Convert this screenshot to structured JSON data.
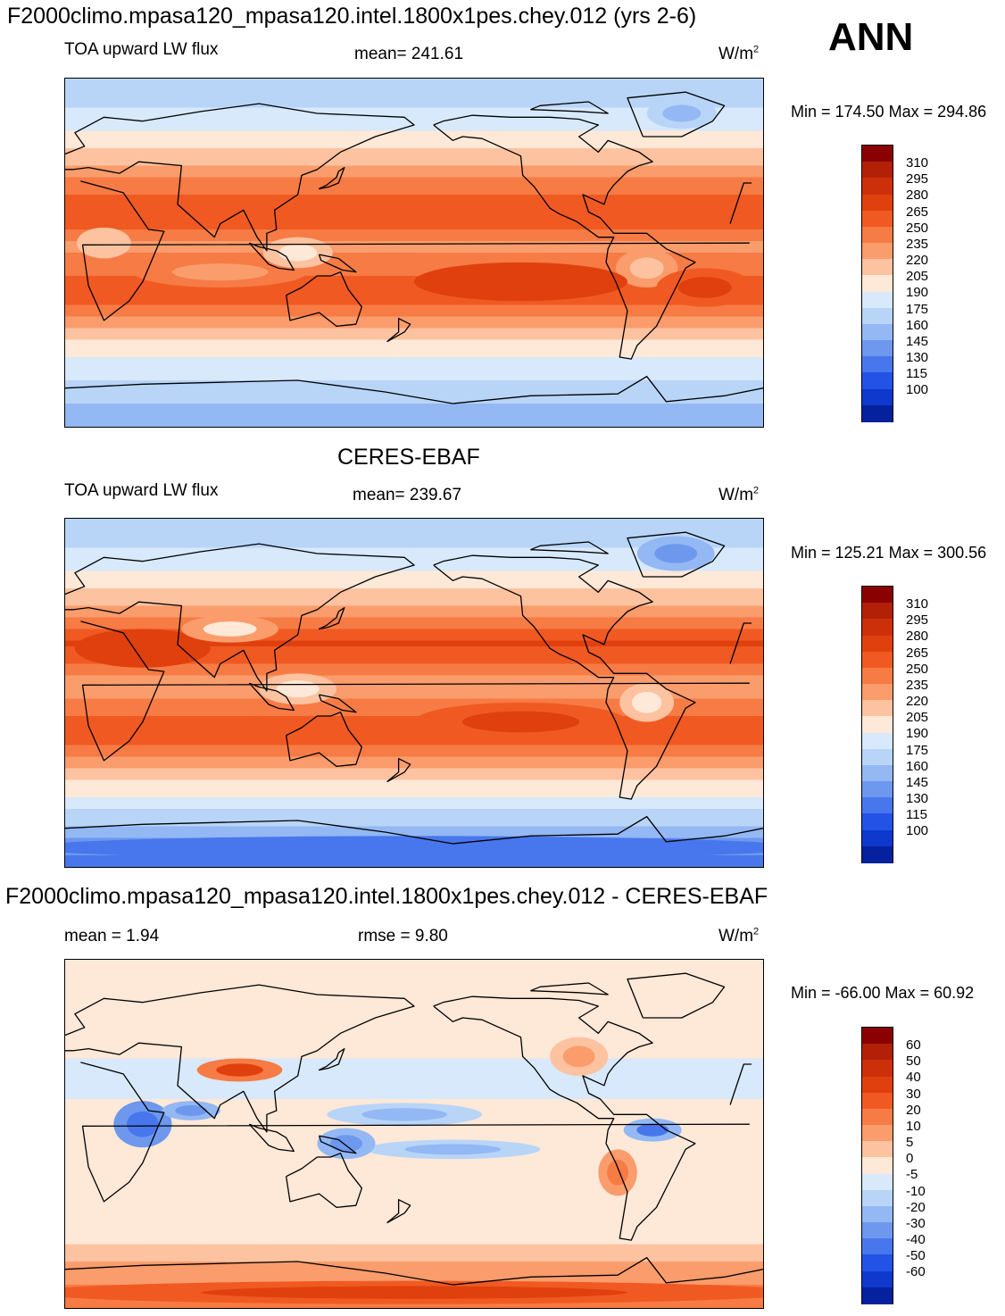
{
  "header": {
    "main_title": "F2000climo.mpasa120_mpasa120.intel.1800x1pes.chey.012 (yrs 2-6)",
    "season": "ANN"
  },
  "panels": [
    {
      "id": "model",
      "title": "",
      "left_label": "TOA upward LW flux",
      "center_label": "mean= 241.61",
      "units": "W/m",
      "units_sup": "2",
      "minmax": "Min = 174.50 Max = 294.86"
    },
    {
      "id": "obs",
      "title": "CERES-EBAF",
      "left_label": "TOA upward LW flux",
      "center_label": "mean= 239.67",
      "units": "W/m",
      "units_sup": "2",
      "minmax": "Min = 125.21 Max = 300.56"
    },
    {
      "id": "diff",
      "title": "F2000climo.mpasa120_mpasa120.intel.1800x1pes.chey.012 - CERES-EBAF",
      "left_label": "mean =   1.94",
      "center_label": "rmse =   9.80",
      "units": "W/m",
      "units_sup": "2",
      "minmax": "Min = -66.00 Max =  60.92"
    }
  ],
  "colorbars": {
    "flux": {
      "ticks": [
        "310",
        "295",
        "280",
        "265",
        "250",
        "235",
        "220",
        "205",
        "190",
        "175",
        "160",
        "145",
        "130",
        "115",
        "100"
      ],
      "colors": [
        "#8b0000",
        "#b32008",
        "#cc300b",
        "#e0400e",
        "#f05a22",
        "#f77b45",
        "#fa9c6c",
        "#fdc2a0",
        "#fee8d7",
        "#d7e9fb",
        "#b8d5f8",
        "#93b8f3",
        "#6d98ee",
        "#4876ec",
        "#2253e6",
        "#0f38cd",
        "#06219d"
      ]
    },
    "diff": {
      "ticks": [
        "60",
        "50",
        "40",
        "30",
        "20",
        "10",
        "5",
        "0",
        "-5",
        "-10",
        "-20",
        "-30",
        "-40",
        "-50",
        "-60"
      ],
      "colors": [
        "#8b0000",
        "#b32008",
        "#cc300b",
        "#e0400e",
        "#f05a22",
        "#f77b45",
        "#fa9c6c",
        "#fdc2a0",
        "#fee8d7",
        "#d7e9fb",
        "#b8d5f8",
        "#93b8f3",
        "#6d98ee",
        "#4876ec",
        "#2253e6",
        "#0f38cd",
        "#06219d"
      ]
    }
  },
  "chart_data": [
    {
      "type": "heatmap",
      "title": "TOA upward LW flux",
      "dataset": "F2000climo.mpasa120_mpasa120.intel.1800x1pes.chey.012 (yrs 2-6)",
      "units": "W/m2",
      "mean": 241.61,
      "min": 174.5,
      "max": 294.86,
      "levels": [
        100,
        115,
        130,
        145,
        160,
        175,
        190,
        205,
        220,
        235,
        250,
        265,
        280,
        295,
        310
      ],
      "lon_range": [
        0,
        360
      ],
      "lat_range": [
        -90,
        90
      ],
      "zonal_profile": [
        {
          "lat": -85,
          "value": 165
        },
        {
          "lat": -70,
          "value": 185
        },
        {
          "lat": -55,
          "value": 205
        },
        {
          "lat": -45,
          "value": 220
        },
        {
          "lat": -35,
          "value": 245
        },
        {
          "lat": -25,
          "value": 270
        },
        {
          "lat": -15,
          "value": 272
        },
        {
          "lat": -5,
          "value": 255
        },
        {
          "lat": 5,
          "value": 245
        },
        {
          "lat": 15,
          "value": 270
        },
        {
          "lat": 25,
          "value": 278
        },
        {
          "lat": 35,
          "value": 255
        },
        {
          "lat": 45,
          "value": 235
        },
        {
          "lat": 55,
          "value": 215
        },
        {
          "lat": 70,
          "value": 195
        },
        {
          "lat": 85,
          "value": 180
        }
      ]
    },
    {
      "type": "heatmap",
      "title": "TOA upward LW flux",
      "dataset": "CERES-EBAF",
      "units": "W/m2",
      "mean": 239.67,
      "min": 125.21,
      "max": 300.56,
      "levels": [
        100,
        115,
        130,
        145,
        160,
        175,
        190,
        205,
        220,
        235,
        250,
        265,
        280,
        295,
        310
      ],
      "lon_range": [
        0,
        360
      ],
      "lat_range": [
        -90,
        90
      ],
      "zonal_profile": [
        {
          "lat": -85,
          "value": 140
        },
        {
          "lat": -70,
          "value": 170
        },
        {
          "lat": -55,
          "value": 200
        },
        {
          "lat": -45,
          "value": 220
        },
        {
          "lat": -35,
          "value": 245
        },
        {
          "lat": -25,
          "value": 268
        },
        {
          "lat": -15,
          "value": 270
        },
        {
          "lat": -5,
          "value": 252
        },
        {
          "lat": 5,
          "value": 243
        },
        {
          "lat": 15,
          "value": 268
        },
        {
          "lat": 25,
          "value": 282
        },
        {
          "lat": 35,
          "value": 258
        },
        {
          "lat": 45,
          "value": 235
        },
        {
          "lat": 55,
          "value": 215
        },
        {
          "lat": 70,
          "value": 195
        },
        {
          "lat": 85,
          "value": 175
        }
      ]
    },
    {
      "type": "heatmap",
      "title": "F2000climo.mpasa120_mpasa120.intel.1800x1pes.chey.012 - CERES-EBAF",
      "units": "W/m2",
      "mean": 1.94,
      "rmse": 9.8,
      "min": -66.0,
      "max": 60.92,
      "levels": [
        -60,
        -50,
        -40,
        -30,
        -20,
        -10,
        -5,
        0,
        5,
        10,
        20,
        30,
        40,
        50,
        60
      ],
      "lon_range": [
        0,
        360
      ],
      "lat_range": [
        -90,
        90
      ],
      "zonal_profile": [
        {
          "lat": -85,
          "value": 25
        },
        {
          "lat": -70,
          "value": 12
        },
        {
          "lat": -55,
          "value": 4
        },
        {
          "lat": -45,
          "value": 2
        },
        {
          "lat": -35,
          "value": 0
        },
        {
          "lat": -25,
          "value": 2
        },
        {
          "lat": -15,
          "value": 2
        },
        {
          "lat": -5,
          "value": 2
        },
        {
          "lat": 5,
          "value": 1
        },
        {
          "lat": 15,
          "value": 2
        },
        {
          "lat": 25,
          "value": -3
        },
        {
          "lat": 35,
          "value": -2
        },
        {
          "lat": 45,
          "value": 2
        },
        {
          "lat": 55,
          "value": 1
        },
        {
          "lat": 70,
          "value": 2
        },
        {
          "lat": 85,
          "value": 3
        }
      ]
    }
  ]
}
